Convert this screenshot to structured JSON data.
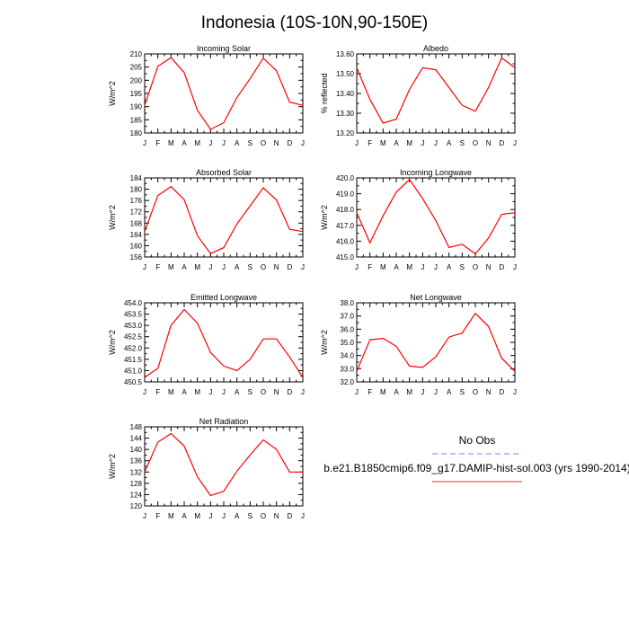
{
  "title": "Indonesia (10S-10N,90-150E)",
  "months": [
    "J",
    "F",
    "M",
    "A",
    "M",
    "J",
    "J",
    "A",
    "S",
    "O",
    "N",
    "D",
    "J"
  ],
  "legend": {
    "obs_label": "No Obs",
    "obs_color": "#8080ff",
    "model_label": "b.e21.B1850cmip6.f09_g17.DAMIP-hist-sol.003 (yrs 1990-2014)",
    "model_color": "#e03030"
  },
  "line_color": "#ff0000",
  "chart_data": [
    {
      "type": "line",
      "title": "Incoming Solar",
      "ylabel": "W/m^2",
      "ylim": [
        180,
        210
      ],
      "yticks": [
        "180",
        "185",
        "190",
        "195",
        "200",
        "205",
        "210"
      ],
      "values": [
        190.5,
        205.3,
        208.6,
        202.9,
        188.6,
        181.4,
        183.9,
        193.5,
        200.6,
        208.4,
        203.6,
        191.7,
        190.5
      ]
    },
    {
      "type": "line",
      "title": "Albedo",
      "ylabel": "% reflected",
      "ylim": [
        13.2,
        13.6
      ],
      "yticks": [
        "13.20",
        "13.30",
        "13.40",
        "13.50",
        "13.60"
      ],
      "values": [
        13.53,
        13.37,
        13.25,
        13.27,
        13.42,
        13.53,
        13.52,
        13.43,
        13.34,
        13.31,
        13.43,
        13.58,
        13.53
      ]
    },
    {
      "type": "line",
      "title": "Absorbed Solar",
      "ylabel": "W/m^2",
      "ylim": [
        156,
        184
      ],
      "yticks": [
        "156",
        "160",
        "164",
        "168",
        "172",
        "176",
        "180",
        "184"
      ],
      "values": [
        165.0,
        177.8,
        180.9,
        176.3,
        163.5,
        157.2,
        159.3,
        167.7,
        174.1,
        180.5,
        176.2,
        165.8,
        165.0
      ]
    },
    {
      "type": "line",
      "title": "Incoming Longwave",
      "ylabel": "W/m^2",
      "ylim": [
        415.0,
        420.0
      ],
      "yticks": [
        "415.0",
        "416.0",
        "417.0",
        "418.0",
        "419.0",
        "420.0"
      ],
      "values": [
        417.8,
        415.9,
        417.6,
        419.1,
        419.9,
        418.7,
        417.3,
        415.6,
        415.8,
        415.2,
        416.2,
        417.7,
        417.8
      ]
    },
    {
      "type": "line",
      "title": "Emitted Longwave",
      "ylabel": "W/m^2",
      "ylim": [
        450.5,
        454.0
      ],
      "yticks": [
        "450.5",
        "451.0",
        "451.5",
        "452.0",
        "452.5",
        "453.0",
        "453.5",
        "454.0"
      ],
      "values": [
        450.7,
        451.1,
        453.0,
        453.7,
        453.1,
        451.8,
        451.2,
        451.0,
        451.5,
        452.4,
        452.4,
        451.6,
        450.7
      ]
    },
    {
      "type": "line",
      "title": "Net Longwave",
      "ylabel": "W/m^2",
      "ylim": [
        32.0,
        38.0
      ],
      "yticks": [
        "32.0",
        "33.0",
        "34.0",
        "35.0",
        "36.0",
        "37.0",
        "38.0"
      ],
      "values": [
        32.8,
        35.2,
        35.3,
        34.7,
        33.2,
        33.1,
        33.9,
        35.4,
        35.7,
        37.2,
        36.2,
        33.8,
        32.8
      ]
    },
    {
      "type": "line",
      "title": "Net Radiation",
      "ylabel": "W/m^2",
      "ylim": [
        120,
        148
      ],
      "yticks": [
        "120",
        "124",
        "128",
        "132",
        "136",
        "140",
        "144",
        "148"
      ],
      "values": [
        132.0,
        142.6,
        145.6,
        141.2,
        130.3,
        123.7,
        125.2,
        132.3,
        138.0,
        143.4,
        140.0,
        132.0,
        132.0
      ]
    }
  ]
}
